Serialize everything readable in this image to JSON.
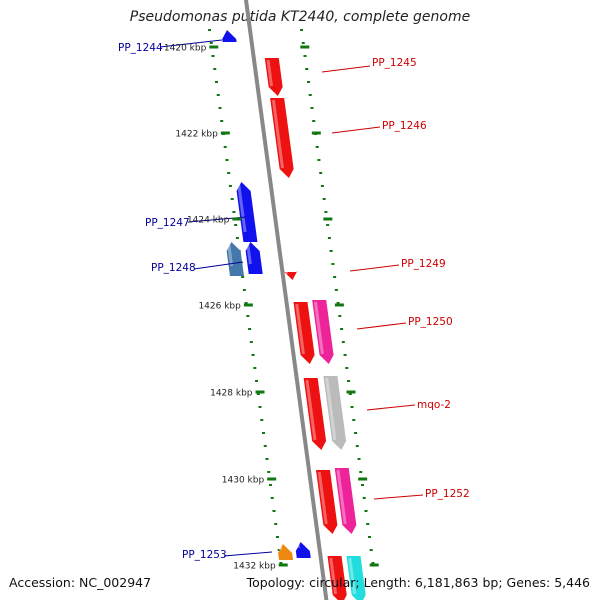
{
  "title": "Pseudomonas putida KT2440, complete genome",
  "accession": "Accession: NC_002947",
  "topology": "Topology: circular; Length: 6,181,863 bp; Genes: 5,446",
  "ruler_labels": [
    "1420 kbp",
    "1422 kbp",
    "1424 kbp",
    "1426 kbp",
    "1428 kbp",
    "1430 kbp",
    "1432 kbp"
  ],
  "colors": {
    "forward_gene": "#ee1111",
    "reverse_gene": "#1111ee",
    "pink_gene": "#ee2299",
    "steel_gene": "#4477aa",
    "grey_gene": "#bbbbbb",
    "orange_gene": "#ee8811",
    "cyan_gene": "#22dddd",
    "forward_label": "#cc0000",
    "reverse_label": "#000099",
    "tick": "#117711",
    "backbone": "#888888"
  },
  "genes": [
    {
      "name": "PP_1244",
      "strand": "reverse"
    },
    {
      "name": "PP_1245",
      "strand": "forward"
    },
    {
      "name": "PP_1246",
      "strand": "forward"
    },
    {
      "name": "PP_1247",
      "strand": "reverse"
    },
    {
      "name": "PP_1248",
      "strand": "reverse"
    },
    {
      "name": "PP_1249",
      "strand": "forward"
    },
    {
      "name": "PP_1250",
      "strand": "forward"
    },
    {
      "name": "mqo-2",
      "strand": "forward"
    },
    {
      "name": "PP_1252",
      "strand": "forward"
    },
    {
      "name": "PP_1253",
      "strand": "reverse"
    }
  ]
}
